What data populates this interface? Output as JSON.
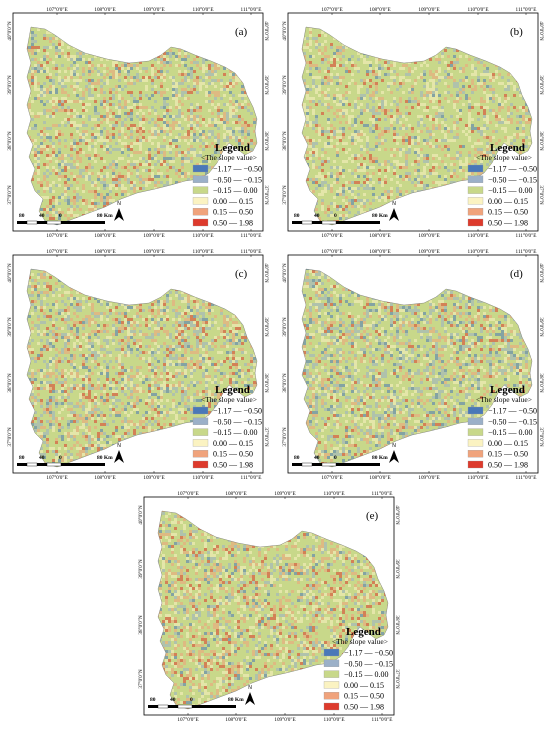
{
  "axes": {
    "longitude_ticks": [
      "107°0'0\"E",
      "108°0'0\"E",
      "109°0'0\"E",
      "110°0'0\"E",
      "111°0'0\"E"
    ],
    "latitude_ticks": [
      "40°0'0\"N",
      "39°0'0\"N",
      "38°0'0\"N",
      "37°0'0\"N"
    ]
  },
  "legend": {
    "title": "Legend",
    "subtitle": "<The slope value>",
    "classes": [
      {
        "label": "−1.17 — −0.50",
        "color": "#4a78b8"
      },
      {
        "label": "−0.50 — −0.15",
        "color": "#9bb0c8"
      },
      {
        "label": "−0.15 — 0.00",
        "color": "#c8d88a"
      },
      {
        "label": "0.00 — 0.15",
        "color": "#fbf3c2"
      },
      {
        "label": "0.15 — 0.50",
        "color": "#f0a37c"
      },
      {
        "label": "0.50 — 1.98",
        "color": "#dd3a2c"
      }
    ]
  },
  "scale_bar": {
    "labels": [
      "80",
      "40",
      "0",
      "80 Km"
    ]
  },
  "north_arrow": {
    "label": "N"
  },
  "panels": [
    {
      "label": "(a)"
    },
    {
      "label": "(b)"
    },
    {
      "label": "(c)"
    },
    {
      "label": "(d)"
    },
    {
      "label": "(e)"
    }
  ]
}
